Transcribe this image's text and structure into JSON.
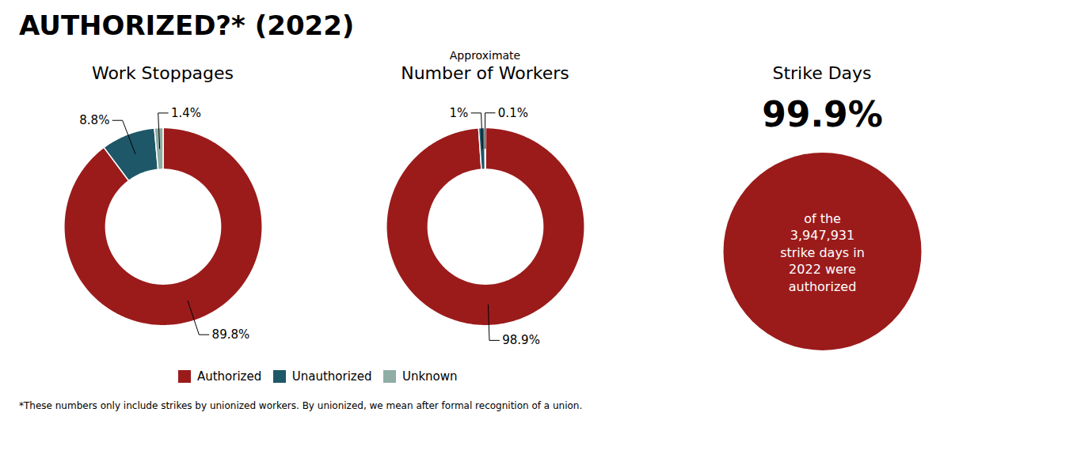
{
  "title": "AUTHORIZED?* (2022)",
  "annotations": [
    "*These numbers only include strikes by unionized workers. By unionized, we mean after formal recognition of a union."
  ],
  "chart_data": [
    {
      "type": "pie",
      "title": "Work Stoppages",
      "categories": [
        "Authorized",
        "Unauthorized",
        "Unknown"
      ],
      "values": [
        89.8,
        8.8,
        1.4
      ],
      "value_labels": [
        "89.8%",
        "8.8%",
        "1.4%"
      ],
      "colors": [
        "#9b1b1b",
        "#1e5768",
        "#8fada4"
      ],
      "data_labels": true,
      "legend": "bottom"
    },
    {
      "type": "pie",
      "title": "Number of Workers",
      "subtitle": "Approximate",
      "categories": [
        "Authorized",
        "Unauthorized",
        "Unknown"
      ],
      "values": [
        98.9,
        1.0,
        0.1
      ],
      "value_labels": [
        "98.9%",
        "1%",
        "0.1%"
      ],
      "colors": [
        "#9b1b1b",
        "#1e5768",
        "#8fada4"
      ],
      "data_labels": true
    },
    {
      "type": "circle",
      "title": "Strike Days",
      "values": [
        99.9
      ],
      "value_labels": [
        "99.9%"
      ],
      "annotations": [
        "of the\n3,947,931\nstrike days in\n2022 were\nauthorized"
      ],
      "color": "#9b1b1b",
      "data_labels": true
    }
  ]
}
